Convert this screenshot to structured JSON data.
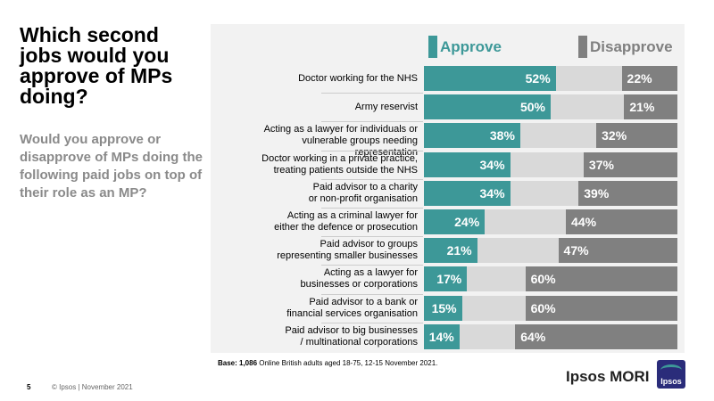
{
  "slide": {
    "title": "Which second jobs would you approve of MPs doing?",
    "subtitle": "Would you approve or disapprove of MPs doing the following paid jobs on top of their role as an MP?",
    "base_bold": "Base: 1,086",
    "base_rest": " Online British adults aged 18-75, 12-15 November 2021.",
    "page_number": "5",
    "footer": "© Ipsos | November 2021",
    "brand": "Ipsos MORI",
    "logo_text": "Ipsos"
  },
  "colors": {
    "approve": "#3d9898",
    "disapprove": "#808080",
    "neutral": "#d9d9d9",
    "panel": "#f2f2f2"
  },
  "chart_data": {
    "type": "bar",
    "orientation": "horizontal-stacked",
    "title": "Which second jobs would you approve of MPs doing?",
    "legend": [
      "Approve",
      "Disapprove"
    ],
    "legend_position": "top",
    "categories": [
      [
        "Doctor working for the NHS"
      ],
      [
        "Army reservist"
      ],
      [
        "Acting as a lawyer for individuals or",
        "vulnerable groups needing representation"
      ],
      [
        "Doctor working in a private practice,",
        "treating patients outside the NHS"
      ],
      [
        "Paid advisor to a charity",
        "or non-profit organisation"
      ],
      [
        "Acting as a criminal lawyer for",
        "either the defence or prosecution"
      ],
      [
        "Paid advisor to groups",
        "representing smaller businesses"
      ],
      [
        "Acting as a lawyer for",
        "businesses or corporations"
      ],
      [
        "Paid advisor to a bank or",
        "financial services organisation"
      ],
      [
        "Paid advisor to big businesses",
        "/ multinational corporations"
      ]
    ],
    "series": [
      {
        "name": "Approve",
        "values": [
          52,
          50,
          38,
          34,
          34,
          24,
          21,
          17,
          15,
          14
        ]
      },
      {
        "name": "Disapprove",
        "values": [
          22,
          21,
          32,
          37,
          39,
          44,
          47,
          60,
          60,
          64
        ]
      }
    ],
    "xlim": [
      0,
      100
    ],
    "unit": "%"
  }
}
